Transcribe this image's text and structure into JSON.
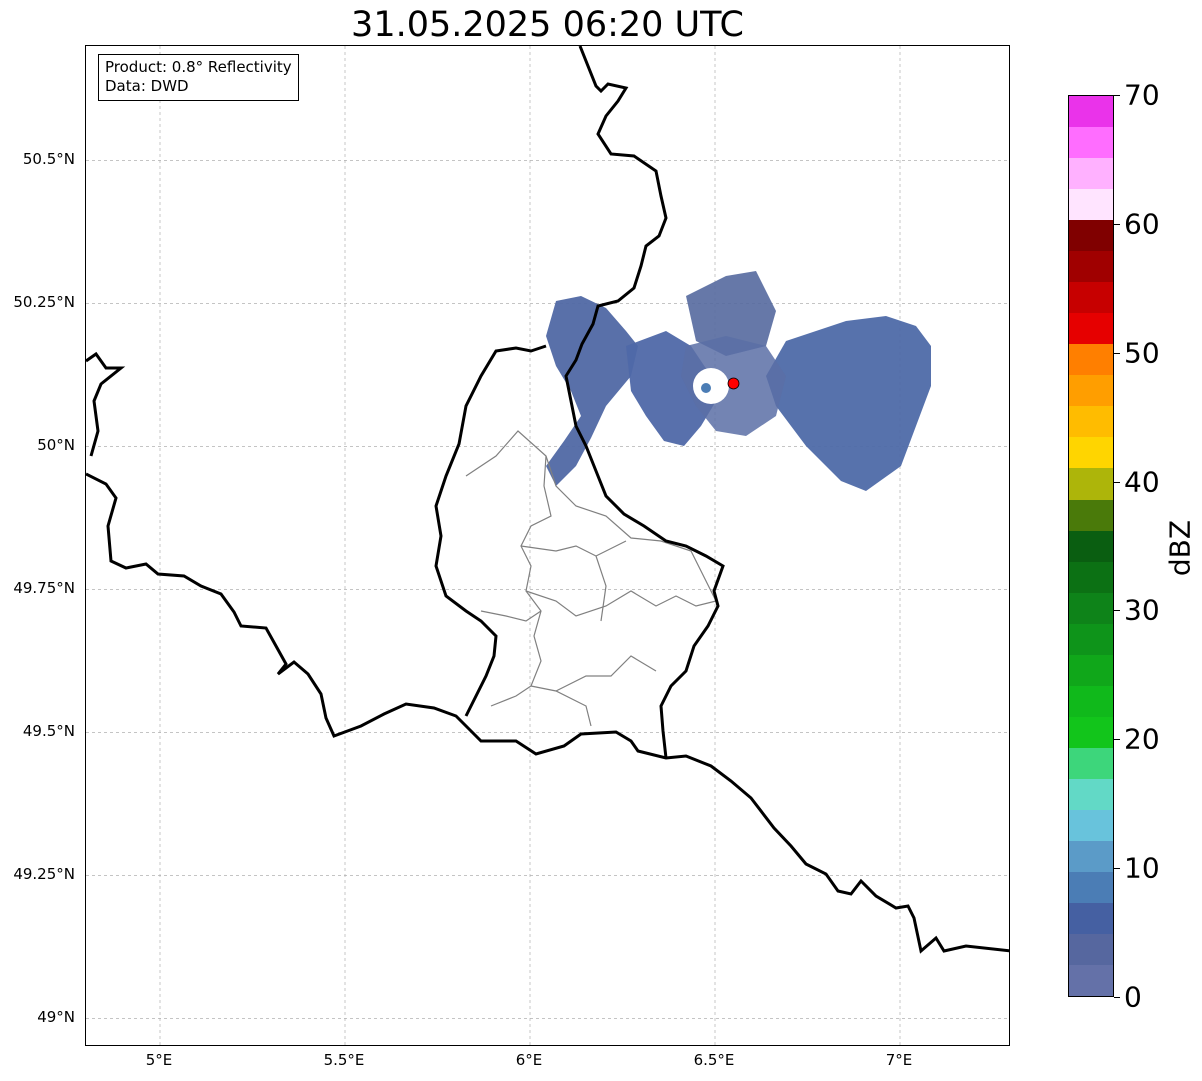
{
  "title": "31.05.2025 06:20 UTC",
  "info": {
    "product": "Product: 0.8° Reflectivity",
    "source": "Data: DWD"
  },
  "axes": {
    "lat_labels": [
      "50.5°N",
      "50.25°N",
      "50°N",
      "49.75°N",
      "49.5°N",
      "49.25°N",
      "49°N"
    ],
    "lat_values": [
      50.5,
      50.25,
      50.0,
      49.75,
      49.5,
      49.25,
      49.0
    ],
    "lon_labels": [
      "5°E",
      "5.5°E",
      "6°E",
      "6.5°E",
      "7°E"
    ],
    "lon_values": [
      5.0,
      5.5,
      6.0,
      6.5,
      7.0
    ],
    "extent": {
      "lon_min": 4.8,
      "lon_max": 7.3,
      "lat_min": 48.95,
      "lat_max": 50.7
    }
  },
  "radar_site": {
    "lon": 6.55,
    "lat": 50.11,
    "color": "#ff0000"
  },
  "colorbar": {
    "label": "dBZ",
    "ticks": [
      "0",
      "10",
      "20",
      "30",
      "40",
      "50",
      "60",
      "70"
    ],
    "min": 0,
    "max": 70,
    "colors": [
      "#6471a8",
      "#56679f",
      "#4560a2",
      "#4b7db5",
      "#5b9bc8",
      "#68c3dc",
      "#62d9c6",
      "#3dd67b",
      "#12c51b",
      "#10b91b",
      "#10a71a",
      "#0e941a",
      "#0e8319",
      "#0c7114",
      "#0a5e11",
      "#4a7a0a",
      "#adb50a",
      "#ffd500",
      "#ffbc00",
      "#ff9e00",
      "#ff7f00",
      "#e60000",
      "#c70000",
      "#a00000",
      "#800000",
      "#ffe4ff",
      "#ffb1ff",
      "#ff6dff",
      "#ea33ea"
    ]
  },
  "colors": {
    "border": "#000000",
    "districts": "#808080",
    "grid": "#b0b0b0",
    "echo": "#5068a4"
  }
}
